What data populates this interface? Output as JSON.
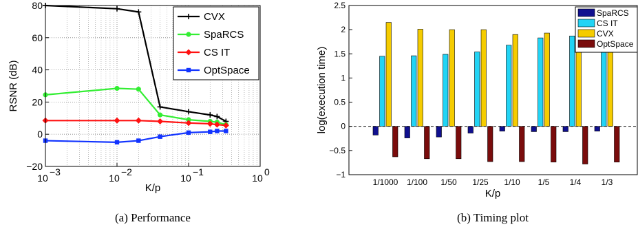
{
  "chart_data": [
    {
      "type": "line",
      "caption": "(a) Performance",
      "xlabel": "K/p",
      "ylabel": "RSNR (dB)",
      "xscale": "log",
      "xlim": [
        0.001,
        1
      ],
      "ylim": [
        -20,
        80
      ],
      "xticks": [
        {
          "value": 0.001,
          "base": "10",
          "exp": "−3"
        },
        {
          "value": 0.01,
          "base": "10",
          "exp": "−2"
        },
        {
          "value": 0.1,
          "base": "10",
          "exp": "−1"
        },
        {
          "value": 1,
          "base": "10",
          "exp": "0"
        }
      ],
      "yticks": [
        {
          "value": -20,
          "label": "−20"
        },
        {
          "value": 0,
          "label": "0"
        },
        {
          "value": 20,
          "label": "20"
        },
        {
          "value": 40,
          "label": "40"
        },
        {
          "value": 60,
          "label": "60"
        },
        {
          "value": 80,
          "label": "80"
        }
      ],
      "grid": true,
      "legend_position": "top-right",
      "x": [
        0.001,
        0.01,
        0.02,
        0.04,
        0.1,
        0.2,
        0.25,
        0.333
      ],
      "series": [
        {
          "name": "CVX",
          "color": "#000000",
          "marker": "plus",
          "values": [
            80,
            78,
            76,
            17,
            14,
            12,
            11,
            8
          ]
        },
        {
          "name": "SpaRCS",
          "color": "#33ee33",
          "marker": "circle",
          "values": [
            24.5,
            28.5,
            28,
            12,
            9,
            8,
            7.5,
            6
          ]
        },
        {
          "name": "CS IT",
          "color": "#ff1111",
          "marker": "diamond",
          "values": [
            8.5,
            8.5,
            8.5,
            8,
            7,
            6.5,
            6,
            5.5
          ]
        },
        {
          "name": "OptSpace",
          "color": "#1133ff",
          "marker": "square",
          "values": [
            -4,
            -5,
            -4,
            -1.5,
            1,
            1.5,
            2,
            2
          ]
        }
      ]
    },
    {
      "type": "bar",
      "caption": "(b) Timing plot",
      "xlabel": "K/p",
      "ylabel": "log(execution time)",
      "ylim": [
        -1,
        2.5
      ],
      "yticks": [
        {
          "value": -1,
          "label": "−1"
        },
        {
          "value": -0.5,
          "label": "−0.5"
        },
        {
          "value": 0,
          "label": "0"
        },
        {
          "value": 0.5,
          "label": "0.5"
        },
        {
          "value": 1,
          "label": "1"
        },
        {
          "value": 1.5,
          "label": "1.5"
        },
        {
          "value": 2,
          "label": "2"
        },
        {
          "value": 2.5,
          "label": "2.5"
        }
      ],
      "grid": false,
      "legend_position": "top-right",
      "categories": [
        "1/1000",
        "1/100",
        "1/50",
        "1/25",
        "1/10",
        "1/5",
        "1/4",
        "1/3"
      ],
      "series": [
        {
          "name": "SpaRCS",
          "color": "#10108f",
          "values": [
            -0.18,
            -0.24,
            -0.22,
            -0.14,
            -0.1,
            -0.11,
            -0.11,
            -0.1
          ]
        },
        {
          "name": "CS IT",
          "color": "#22d4f5",
          "values": [
            1.45,
            1.46,
            1.49,
            1.54,
            1.68,
            1.83,
            1.87,
            1.85
          ]
        },
        {
          "name": "CVX",
          "color": "#f5cc00",
          "values": [
            2.15,
            2.01,
            2.0,
            2.0,
            1.9,
            1.93,
            1.97,
            2.0
          ]
        },
        {
          "name": "OptSpace",
          "color": "#7a0c0c",
          "values": [
            -0.63,
            -0.67,
            -0.67,
            -0.73,
            -0.73,
            -0.74,
            -0.78,
            -0.74
          ]
        }
      ]
    }
  ]
}
